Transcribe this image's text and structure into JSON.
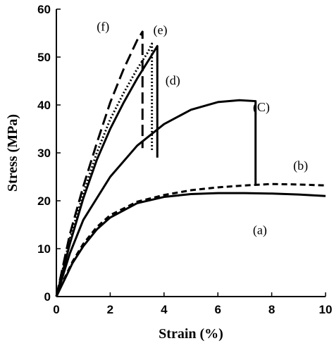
{
  "chart_data": {
    "type": "line",
    "title": "",
    "xlabel": "Strain (%)",
    "ylabel": "Stress (MPa)",
    "xlim": [
      0,
      10
    ],
    "ylim": [
      0,
      60
    ],
    "xticks": [
      0,
      2,
      4,
      6,
      8,
      10
    ],
    "yticks": [
      0,
      10,
      20,
      30,
      40,
      50,
      60
    ],
    "grid": false,
    "legend": "none",
    "series": [
      {
        "label": "(a)",
        "style": "solid",
        "color": "#000000",
        "x": [
          0,
          0.3,
          0.6,
          1.0,
          1.5,
          2.0,
          3.0,
          4.0,
          5.0,
          6.0,
          7.0,
          8.0,
          9.0,
          10.0
        ],
        "y": [
          0,
          3.5,
          7,
          10.5,
          14,
          16.5,
          19.5,
          20.8,
          21.4,
          21.6,
          21.6,
          21.5,
          21.3,
          21.0
        ]
      },
      {
        "label": "(b)",
        "style": "dashed",
        "color": "#000000",
        "x": [
          0,
          0.3,
          0.6,
          1.0,
          1.5,
          2.0,
          3.0,
          4.0,
          5.0,
          6.0,
          7.0,
          8.0,
          9.0,
          10.0
        ],
        "y": [
          0,
          3.8,
          7.3,
          11,
          14.5,
          17,
          19.8,
          21.2,
          22.2,
          22.8,
          23.2,
          23.5,
          23.4,
          23.2
        ]
      },
      {
        "label": "(C)",
        "style": "solid",
        "color": "#000000",
        "x": [
          0,
          0.5,
          1.0,
          2.0,
          3.0,
          4.0,
          5.0,
          6.0,
          6.8,
          7.4,
          7.4
        ],
        "y": [
          0,
          9,
          16,
          25,
          31.5,
          36,
          39,
          40.6,
          41,
          40.8,
          23.5
        ]
      },
      {
        "label": "(d)",
        "style": "solid",
        "color": "#000000",
        "x": [
          0,
          0.5,
          1.0,
          1.5,
          2.0,
          2.5,
          3.0,
          3.5,
          3.75,
          3.75
        ],
        "y": [
          0,
          11,
          20.5,
          28.5,
          35,
          40.5,
          45.5,
          50,
          52.3,
          29
        ]
      },
      {
        "label": "(e)",
        "style": "dotted",
        "color": "#000000",
        "x": [
          0,
          0.5,
          1.0,
          1.5,
          2.0,
          2.5,
          3.0,
          3.4,
          3.55,
          3.55
        ],
        "y": [
          0,
          12,
          21.5,
          30,
          37,
          42.5,
          47.5,
          51,
          52.8,
          30.5
        ]
      },
      {
        "label": "(f)",
        "style": "dashed-long",
        "color": "#000000",
        "x": [
          0,
          0.5,
          1.0,
          1.5,
          2.0,
          2.5,
          3.0,
          3.2,
          3.2
        ],
        "y": [
          0,
          13,
          23,
          32,
          40.5,
          47.5,
          53.5,
          55.3,
          31
        ]
      }
    ]
  }
}
